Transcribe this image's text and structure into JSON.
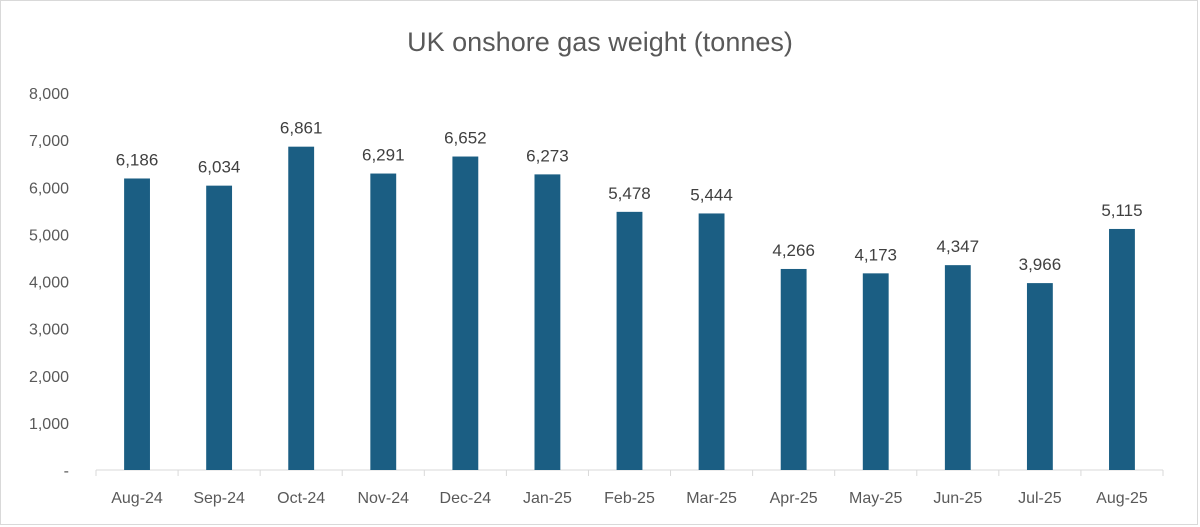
{
  "chart_data": {
    "type": "bar",
    "title": "UK onshore gas weight (tonnes)",
    "xlabel": "",
    "ylabel": "",
    "categories": [
      "Aug-24",
      "Sep-24",
      "Oct-24",
      "Nov-24",
      "Dec-24",
      "Jan-25",
      "Feb-25",
      "Mar-25",
      "Apr-25",
      "May-25",
      "Jun-25",
      "Jul-25",
      "Aug-25"
    ],
    "values": [
      6186,
      6034,
      6861,
      6291,
      6652,
      6273,
      5478,
      5444,
      4266,
      4173,
      4347,
      3966,
      5115
    ],
    "data_labels": [
      "6,186",
      "6,034",
      "6,861",
      "6,291",
      "6,652",
      "6,273",
      "5,478",
      "5,444",
      "4,266",
      "4,173",
      "4,347",
      "3,966",
      "5,115"
    ],
    "ylim": [
      0,
      8000
    ],
    "y_ticks": [
      0,
      1000,
      2000,
      3000,
      4000,
      5000,
      6000,
      7000,
      8000
    ],
    "y_tick_labels": [
      "-",
      "1,000",
      "2,000",
      "3,000",
      "4,000",
      "5,000",
      "6,000",
      "7,000",
      "8,000"
    ],
    "grid": false,
    "legend": "none",
    "colors": {
      "bar": "#1b5e83",
      "axis": "#d9d9d9",
      "text": "#595959"
    }
  }
}
